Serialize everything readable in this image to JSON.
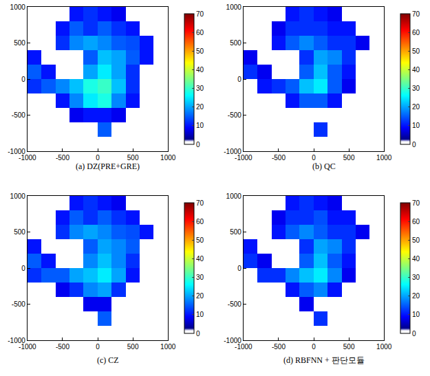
{
  "chart_data": [
    {
      "type": "heatmap",
      "title": "(a) DZ(PRE+GRE)",
      "x": [
        -900,
        -700,
        -500,
        -300,
        -100,
        100,
        300,
        500,
        700,
        900
      ],
      "y": [
        -900,
        -700,
        -500,
        -300,
        -100,
        100,
        300,
        500,
        700,
        900
      ],
      "z": [
        [
          null,
          null,
          null,
          null,
          null,
          null,
          null,
          null,
          null,
          null
        ],
        [
          null,
          null,
          null,
          null,
          null,
          15,
          null,
          null,
          null,
          null
        ],
        [
          null,
          null,
          null,
          8,
          10,
          10,
          8,
          null,
          null,
          null
        ],
        [
          null,
          null,
          10,
          18,
          25,
          28,
          18,
          10,
          null,
          null
        ],
        [
          12,
          15,
          18,
          22,
          28,
          30,
          22,
          12,
          null,
          null
        ],
        [
          15,
          10,
          null,
          null,
          20,
          25,
          20,
          12,
          null,
          null
        ],
        [
          10,
          null,
          null,
          null,
          15,
          22,
          20,
          15,
          10,
          null
        ],
        [
          null,
          null,
          12,
          18,
          20,
          18,
          15,
          14,
          10,
          null
        ],
        [
          null,
          null,
          10,
          15,
          12,
          15,
          12,
          10,
          null,
          null
        ],
        [
          null,
          null,
          null,
          10,
          12,
          10,
          8,
          null,
          null,
          null
        ]
      ],
      "xlim": [
        -1000,
        1000
      ],
      "xticks": [
        -1000,
        -500,
        0,
        500,
        1000
      ],
      "ylim": [
        -1000,
        1000
      ],
      "yticks": [
        -1000,
        -500,
        0,
        500,
        1000
      ],
      "colorbar_range": [
        0,
        70
      ],
      "colorbar_ticks": [
        0,
        10,
        20,
        30,
        40,
        50,
        60,
        70
      ]
    },
    {
      "type": "heatmap",
      "title": "(b) QC",
      "x": [
        -900,
        -700,
        -500,
        -300,
        -100,
        100,
        300,
        500,
        700,
        900
      ],
      "y": [
        -900,
        -700,
        -500,
        -300,
        -100,
        100,
        300,
        500,
        700,
        900
      ],
      "z": [
        [
          null,
          null,
          null,
          null,
          null,
          null,
          null,
          null,
          null,
          null
        ],
        [
          null,
          null,
          null,
          null,
          null,
          12,
          null,
          null,
          null,
          null
        ],
        [
          null,
          null,
          null,
          null,
          null,
          null,
          null,
          null,
          null,
          null
        ],
        [
          null,
          null,
          null,
          10,
          15,
          15,
          10,
          null,
          null,
          null
        ],
        [
          null,
          10,
          12,
          15,
          22,
          25,
          15,
          8,
          null,
          null
        ],
        [
          12,
          8,
          null,
          null,
          15,
          22,
          15,
          10,
          null,
          null
        ],
        [
          8,
          null,
          null,
          null,
          12,
          20,
          18,
          12,
          null,
          null
        ],
        [
          null,
          null,
          10,
          15,
          18,
          15,
          12,
          12,
          8,
          null
        ],
        [
          null,
          null,
          8,
          12,
          12,
          12,
          10,
          10,
          null,
          null
        ],
        [
          null,
          null,
          null,
          10,
          12,
          10,
          8,
          null,
          null,
          null
        ]
      ],
      "xlim": [
        -1000,
        1000
      ],
      "xticks": [
        -1000,
        -500,
        0,
        500,
        1000
      ],
      "ylim": [
        -1000,
        1000
      ],
      "yticks": [
        -1000,
        -500,
        0,
        500,
        1000
      ],
      "colorbar_range": [
        0,
        70
      ],
      "colorbar_ticks": [
        0,
        10,
        20,
        30,
        40,
        50,
        60,
        70
      ]
    },
    {
      "type": "heatmap",
      "title": "(c) CZ",
      "x": [
        -900,
        -700,
        -500,
        -300,
        -100,
        100,
        300,
        500,
        700,
        900
      ],
      "y": [
        -900,
        -700,
        -500,
        -300,
        -100,
        100,
        300,
        500,
        700,
        900
      ],
      "z": [
        [
          null,
          null,
          null,
          null,
          null,
          null,
          null,
          null,
          null,
          null
        ],
        [
          null,
          null,
          null,
          null,
          null,
          15,
          null,
          null,
          null,
          null
        ],
        [
          null,
          null,
          null,
          null,
          8,
          8,
          null,
          null,
          null,
          null
        ],
        [
          null,
          null,
          8,
          12,
          18,
          20,
          12,
          null,
          null,
          null
        ],
        [
          12,
          15,
          15,
          20,
          22,
          25,
          20,
          10,
          null,
          null
        ],
        [
          15,
          10,
          null,
          null,
          18,
          22,
          18,
          12,
          null,
          null
        ],
        [
          10,
          null,
          null,
          null,
          15,
          20,
          18,
          15,
          null,
          null
        ],
        [
          null,
          null,
          12,
          18,
          20,
          18,
          15,
          14,
          10,
          null
        ],
        [
          null,
          null,
          10,
          15,
          12,
          15,
          12,
          10,
          null,
          null
        ],
        [
          null,
          null,
          null,
          10,
          12,
          10,
          8,
          null,
          null,
          null
        ]
      ],
      "xlim": [
        -1000,
        1000
      ],
      "xticks": [
        -1000,
        -500,
        0,
        500,
        1000
      ],
      "ylim": [
        -1000,
        1000
      ],
      "yticks": [
        -1000,
        -500,
        0,
        500,
        1000
      ],
      "colorbar_range": [
        0,
        70
      ],
      "colorbar_ticks": [
        0,
        10,
        20,
        30,
        40,
        50,
        60,
        70
      ]
    },
    {
      "type": "heatmap",
      "title": "(d) RBFNN + 판단모듈",
      "x": [
        -900,
        -700,
        -500,
        -300,
        -100,
        100,
        300,
        500,
        700,
        900
      ],
      "y": [
        -900,
        -700,
        -500,
        -300,
        -100,
        100,
        300,
        500,
        700,
        900
      ],
      "z": [
        [
          null,
          null,
          null,
          null,
          null,
          null,
          null,
          null,
          null,
          null
        ],
        [
          null,
          null,
          null,
          null,
          null,
          12,
          null,
          null,
          null,
          null
        ],
        [
          null,
          null,
          null,
          null,
          8,
          null,
          null,
          null,
          null,
          null
        ],
        [
          null,
          null,
          null,
          10,
          15,
          18,
          10,
          null,
          null,
          null
        ],
        [
          null,
          12,
          12,
          18,
          22,
          25,
          18,
          8,
          null,
          null
        ],
        [
          12,
          8,
          null,
          null,
          15,
          22,
          15,
          10,
          null,
          null
        ],
        [
          10,
          null,
          null,
          null,
          12,
          20,
          18,
          12,
          null,
          null
        ],
        [
          null,
          null,
          10,
          15,
          18,
          15,
          12,
          12,
          8,
          null
        ],
        [
          null,
          null,
          8,
          12,
          12,
          14,
          10,
          10,
          null,
          null
        ],
        [
          null,
          null,
          null,
          10,
          12,
          10,
          8,
          null,
          null,
          null
        ]
      ],
      "xlim": [
        -1000,
        1000
      ],
      "xticks": [
        -1000,
        -500,
        0,
        500,
        1000
      ],
      "ylim": [
        -1000,
        1000
      ],
      "yticks": [
        -1000,
        -500,
        0,
        500,
        1000
      ],
      "colorbar_range": [
        0,
        70
      ],
      "colorbar_ticks": [
        0,
        10,
        20,
        30,
        40,
        50,
        60,
        70
      ]
    }
  ]
}
